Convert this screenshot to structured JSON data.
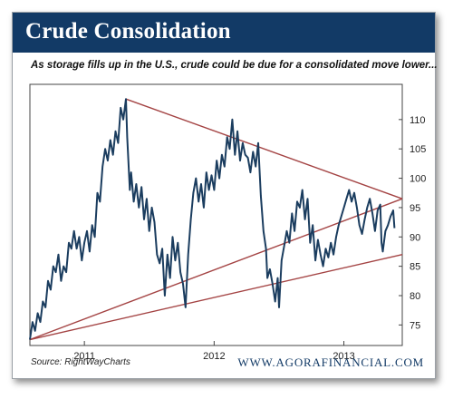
{
  "banner": {
    "title": "Crude Consolidation"
  },
  "subtitle": "As storage fills up in the U.S., crude could be due for a consolidated move lower...",
  "footer": {
    "source": "Source:  RightWayCharts",
    "brand": "WWW.AGORAFINANCIAL.COM"
  },
  "colors": {
    "banner": "#123a66",
    "line": "#1b3d5f",
    "trendline": "#a44444"
  },
  "chart_data": {
    "type": "line",
    "title": "Crude Consolidation",
    "subtitle": "As storage fills up in the U.S., crude could be due for a consolidated move lower...",
    "xlabel": "",
    "ylabel": "",
    "x_tick_labels": [
      "2011",
      "2012",
      "2013"
    ],
    "x_ticks": [
      2011.0,
      2012.0,
      2013.0
    ],
    "xlim": [
      2010.58,
      2013.45
    ],
    "y_ticks": [
      75,
      80,
      85,
      90,
      95,
      100,
      105,
      110
    ],
    "ylim": [
      71.5,
      116
    ],
    "y_axis_position": "right",
    "grid": false,
    "series": [
      {
        "values": [
          [
            2010.58,
            72.5
          ],
          [
            2010.6,
            75.5
          ],
          [
            2010.62,
            74
          ],
          [
            2010.64,
            77
          ],
          [
            2010.66,
            75.5
          ],
          [
            2010.68,
            79
          ],
          [
            2010.7,
            78
          ],
          [
            2010.72,
            82.5
          ],
          [
            2010.74,
            81
          ],
          [
            2010.76,
            85
          ],
          [
            2010.78,
            84
          ],
          [
            2010.8,
            87
          ],
          [
            2010.82,
            82.5
          ],
          [
            2010.84,
            85
          ],
          [
            2010.86,
            84
          ],
          [
            2010.88,
            89
          ],
          [
            2010.9,
            88
          ],
          [
            2010.92,
            91
          ],
          [
            2010.94,
            88
          ],
          [
            2010.96,
            90
          ],
          [
            2010.98,
            86
          ],
          [
            2011.0,
            89
          ],
          [
            2011.02,
            91
          ],
          [
            2011.04,
            87.5
          ],
          [
            2011.06,
            92
          ],
          [
            2011.08,
            90
          ],
          [
            2011.1,
            97.5
          ],
          [
            2011.12,
            96
          ],
          [
            2011.14,
            102
          ],
          [
            2011.16,
            105
          ],
          [
            2011.18,
            103
          ],
          [
            2011.2,
            106.5
          ],
          [
            2011.22,
            104
          ],
          [
            2011.24,
            108
          ],
          [
            2011.26,
            106
          ],
          [
            2011.28,
            112
          ],
          [
            2011.3,
            110
          ],
          [
            2011.32,
            113.5
          ],
          [
            2011.33,
            107
          ],
          [
            2011.35,
            98
          ],
          [
            2011.36,
            101
          ],
          [
            2011.38,
            96
          ],
          [
            2011.4,
            99
          ],
          [
            2011.42,
            95
          ],
          [
            2011.44,
            98.5
          ],
          [
            2011.46,
            93
          ],
          [
            2011.48,
            96.5
          ],
          [
            2011.5,
            91
          ],
          [
            2011.52,
            95
          ],
          [
            2011.54,
            92.5
          ],
          [
            2011.56,
            87
          ],
          [
            2011.58,
            85.5
          ],
          [
            2011.6,
            88
          ],
          [
            2011.62,
            80
          ],
          [
            2011.64,
            87
          ],
          [
            2011.66,
            83
          ],
          [
            2011.68,
            90
          ],
          [
            2011.7,
            86
          ],
          [
            2011.72,
            89
          ],
          [
            2011.74,
            84
          ],
          [
            2011.76,
            82
          ],
          [
            2011.78,
            78
          ],
          [
            2011.8,
            87
          ],
          [
            2011.82,
            93
          ],
          [
            2011.84,
            97.5
          ],
          [
            2011.86,
            100
          ],
          [
            2011.88,
            96
          ],
          [
            2011.9,
            99
          ],
          [
            2011.92,
            95
          ],
          [
            2011.94,
            101
          ],
          [
            2011.96,
            98
          ],
          [
            2011.98,
            100.5
          ],
          [
            2012.0,
            98
          ],
          [
            2012.02,
            103
          ],
          [
            2012.04,
            100
          ],
          [
            2012.06,
            104
          ],
          [
            2012.08,
            102
          ],
          [
            2012.1,
            107
          ],
          [
            2012.12,
            105
          ],
          [
            2012.14,
            110
          ],
          [
            2012.16,
            104
          ],
          [
            2012.18,
            108
          ],
          [
            2012.2,
            103
          ],
          [
            2012.22,
            106
          ],
          [
            2012.24,
            104
          ],
          [
            2012.26,
            103.5
          ],
          [
            2012.28,
            101
          ],
          [
            2012.3,
            104.5
          ],
          [
            2012.32,
            102
          ],
          [
            2012.34,
            106
          ],
          [
            2012.36,
            97
          ],
          [
            2012.38,
            91
          ],
          [
            2012.4,
            88
          ],
          [
            2012.41,
            83
          ],
          [
            2012.43,
            84.5
          ],
          [
            2012.45,
            82
          ],
          [
            2012.47,
            79
          ],
          [
            2012.49,
            83
          ],
          [
            2012.5,
            78
          ],
          [
            2012.52,
            86
          ],
          [
            2012.54,
            88.5
          ],
          [
            2012.56,
            91
          ],
          [
            2012.58,
            89
          ],
          [
            2012.6,
            94
          ],
          [
            2012.62,
            91
          ],
          [
            2012.64,
            96
          ],
          [
            2012.66,
            95
          ],
          [
            2012.68,
            98
          ],
          [
            2012.7,
            93
          ],
          [
            2012.72,
            96.5
          ],
          [
            2012.74,
            89
          ],
          [
            2012.76,
            92
          ],
          [
            2012.78,
            86
          ],
          [
            2012.8,
            89.5
          ],
          [
            2012.82,
            87
          ],
          [
            2012.84,
            85
          ],
          [
            2012.86,
            88
          ],
          [
            2012.88,
            86.5
          ],
          [
            2012.9,
            89
          ],
          [
            2012.92,
            87
          ],
          [
            2012.94,
            90
          ],
          [
            2012.96,
            92
          ],
          [
            2012.98,
            93.5
          ],
          [
            2013.0,
            95
          ],
          [
            2013.02,
            96.5
          ],
          [
            2013.04,
            98
          ],
          [
            2013.06,
            96
          ],
          [
            2013.08,
            97.5
          ],
          [
            2013.1,
            95
          ],
          [
            2013.12,
            92
          ],
          [
            2013.14,
            90.5
          ],
          [
            2013.16,
            93
          ],
          [
            2013.18,
            95
          ],
          [
            2013.2,
            96.5
          ],
          [
            2013.22,
            94
          ],
          [
            2013.24,
            91
          ],
          [
            2013.26,
            94.5
          ],
          [
            2013.28,
            95.5
          ],
          [
            2013.29,
            89
          ],
          [
            2013.3,
            87.5
          ],
          [
            2013.32,
            91
          ],
          [
            2013.34,
            92
          ],
          [
            2013.36,
            93.5
          ],
          [
            2013.38,
            94.5
          ],
          [
            2013.39,
            91.5
          ]
        ]
      }
    ],
    "trendlines": [
      {
        "from": [
          2010.58,
          72.5
        ],
        "to": [
          2013.45,
          96.5
        ]
      },
      {
        "from": [
          2010.58,
          72.5
        ],
        "to": [
          2013.45,
          87
        ]
      },
      {
        "from": [
          2011.32,
          113.5
        ],
        "to": [
          2013.45,
          96.5
        ]
      }
    ]
  }
}
